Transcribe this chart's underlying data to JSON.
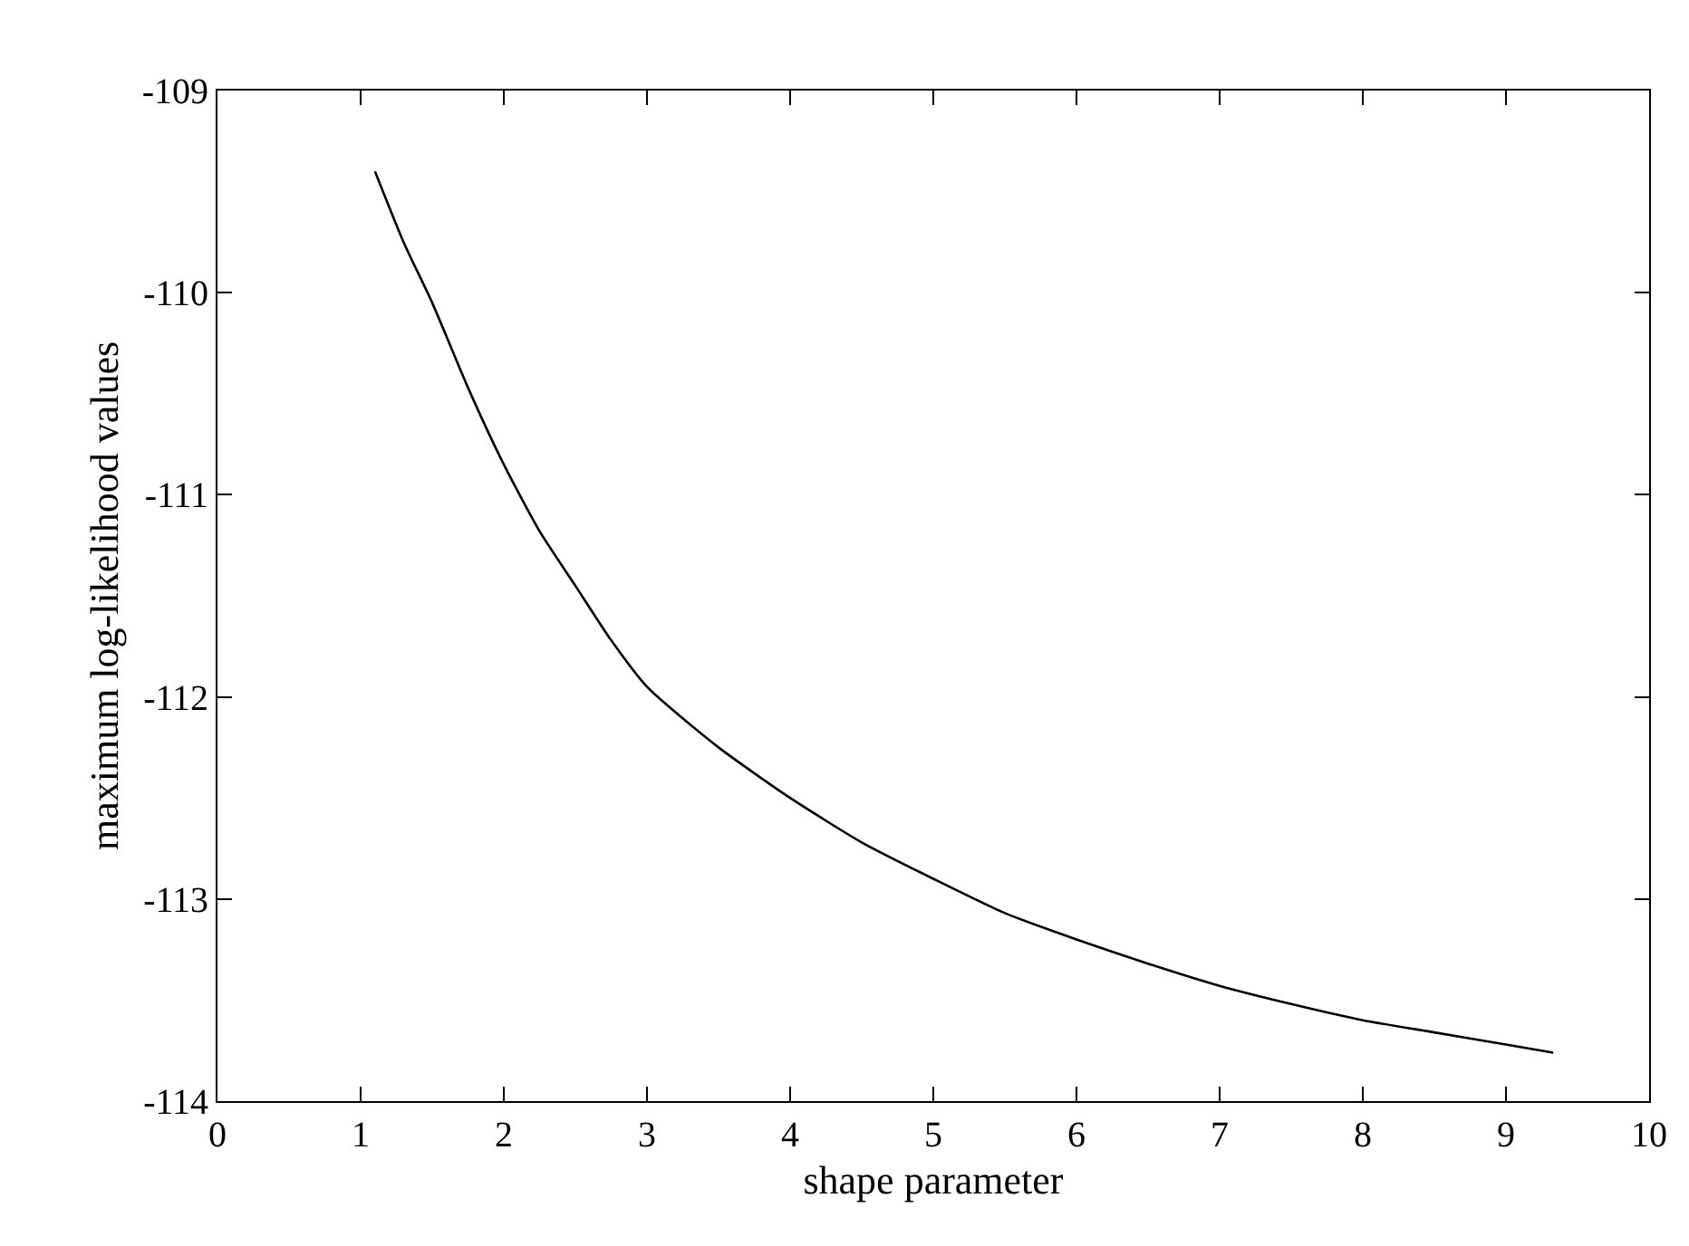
{
  "chart_data": {
    "type": "line",
    "xlabel": "shape parameter",
    "ylabel": "maximum log-likelihood values",
    "series": [
      {
        "color": "#000000",
        "x": [
          1.1,
          1.3,
          1.5,
          1.75,
          2,
          2.25,
          2.5,
          2.75,
          3,
          3.5,
          4,
          4.5,
          5,
          5.5,
          6,
          6.5,
          7,
          7.5,
          8,
          8.5,
          9,
          9.33
        ],
        "values": [
          -109.4,
          -109.75,
          -110.05,
          -110.47,
          -110.85,
          -111.18,
          -111.45,
          -111.72,
          -111.95,
          -112.25,
          -112.5,
          -112.72,
          -112.9,
          -113.07,
          -113.2,
          -113.32,
          -113.43,
          -113.52,
          -113.6,
          -113.66,
          -113.72,
          -113.76
        ]
      }
    ],
    "xlim": [
      0,
      10
    ],
    "xticks": [
      0,
      1,
      2,
      3,
      4,
      5,
      6,
      7,
      8,
      9,
      10
    ],
    "ylim": [
      -114,
      -109
    ],
    "yticks": [
      -114,
      -113,
      -112,
      -111,
      -110,
      -109
    ],
    "grid": false,
    "marker": "none",
    "line_style": "solid"
  }
}
